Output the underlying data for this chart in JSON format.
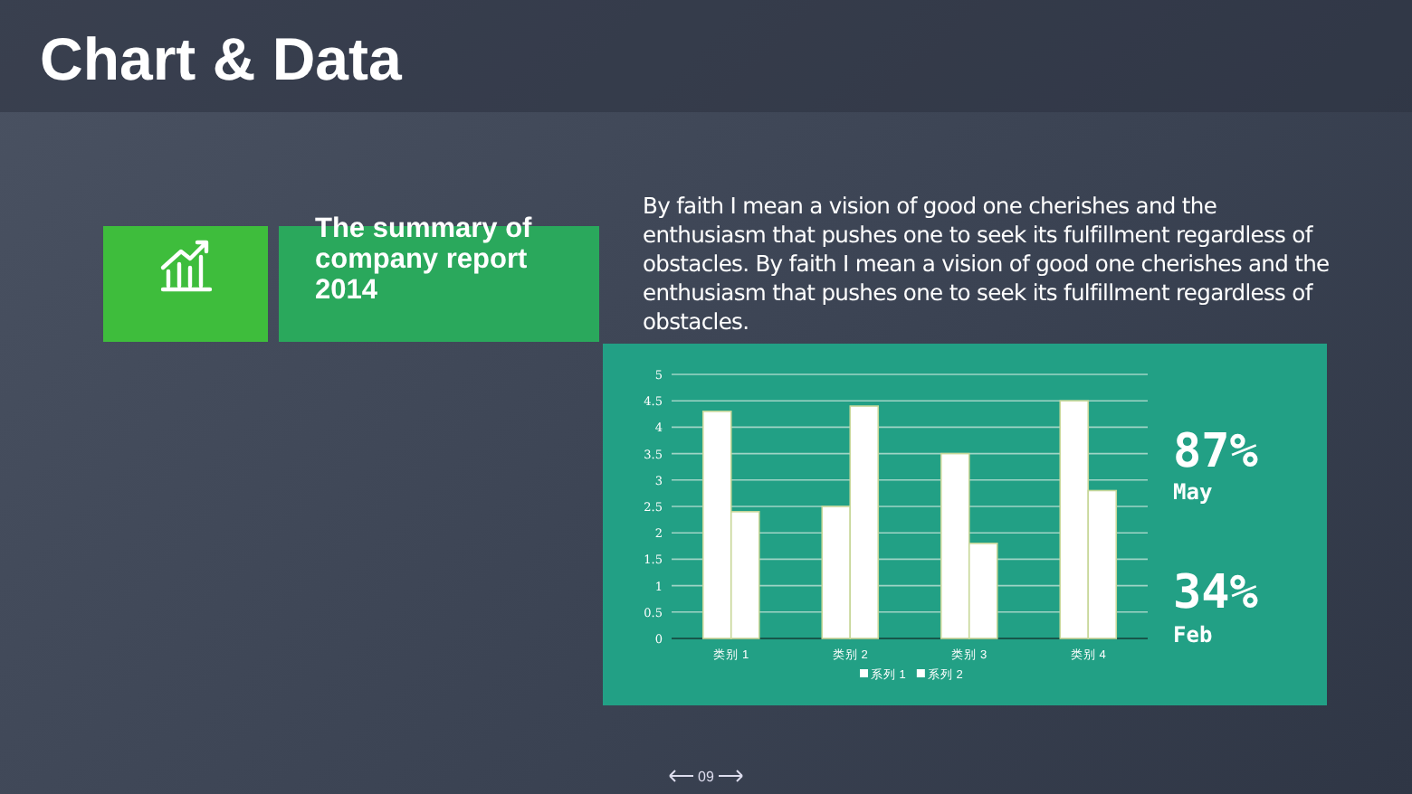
{
  "chart_data": {
    "type": "bar",
    "title": "Chart & Data",
    "subtitle": "The summary of company report 2014",
    "annotations": [
      "By faith I mean a vision of good one cherishes and the enthusiasm that pushes one to seek its fulfillment regardless of obstacles. By faith I mean a vision of good one cherishes and the enthusiasm that pushes one to seek its fulfillment regardless of obstacles.",
      "87%",
      "May",
      "34%",
      "Feb",
      "09"
    ],
    "categories": [
      "类别 1",
      "类别 2",
      "类别 3",
      "类别 4"
    ],
    "series": [
      {
        "name": "系列 1",
        "color": "#ffffff",
        "values": [
          4.3,
          2.5,
          3.5,
          4.5
        ]
      },
      {
        "name": "系列 2",
        "color": "#ffffff",
        "values": [
          2.4,
          4.4,
          1.8,
          2.8
        ]
      }
    ],
    "ylim": [
      0,
      5
    ],
    "yticks": [
      0,
      0.5,
      1,
      1.5,
      2,
      2.5,
      3,
      3.5,
      4,
      4.5,
      5
    ],
    "grid": "y",
    "legend": "bottom"
  }
}
